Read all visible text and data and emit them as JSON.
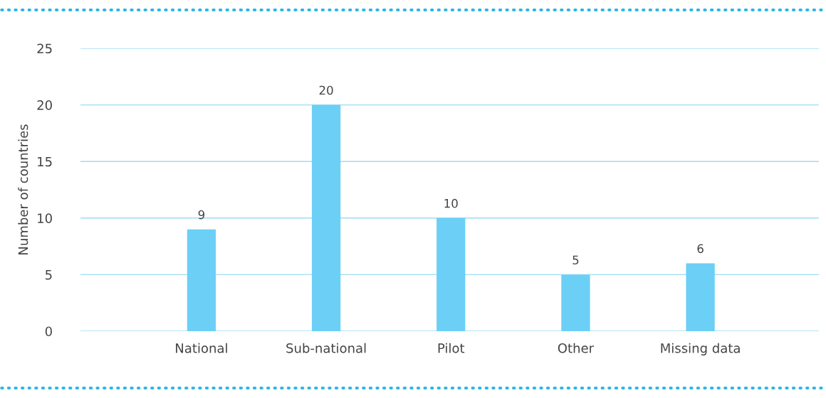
{
  "chart_data": {
    "type": "bar",
    "ylabel": "Number of countries",
    "categories": [
      "National",
      "Sub-national",
      "Pilot",
      "Other",
      "Missing data"
    ],
    "values": [
      9,
      20,
      10,
      5,
      6
    ],
    "color": "#6ccff6",
    "ylim": [
      0,
      25
    ],
    "yticks": [
      0,
      5,
      10,
      15,
      20,
      25
    ],
    "grid": "y",
    "data_labels": true
  }
}
